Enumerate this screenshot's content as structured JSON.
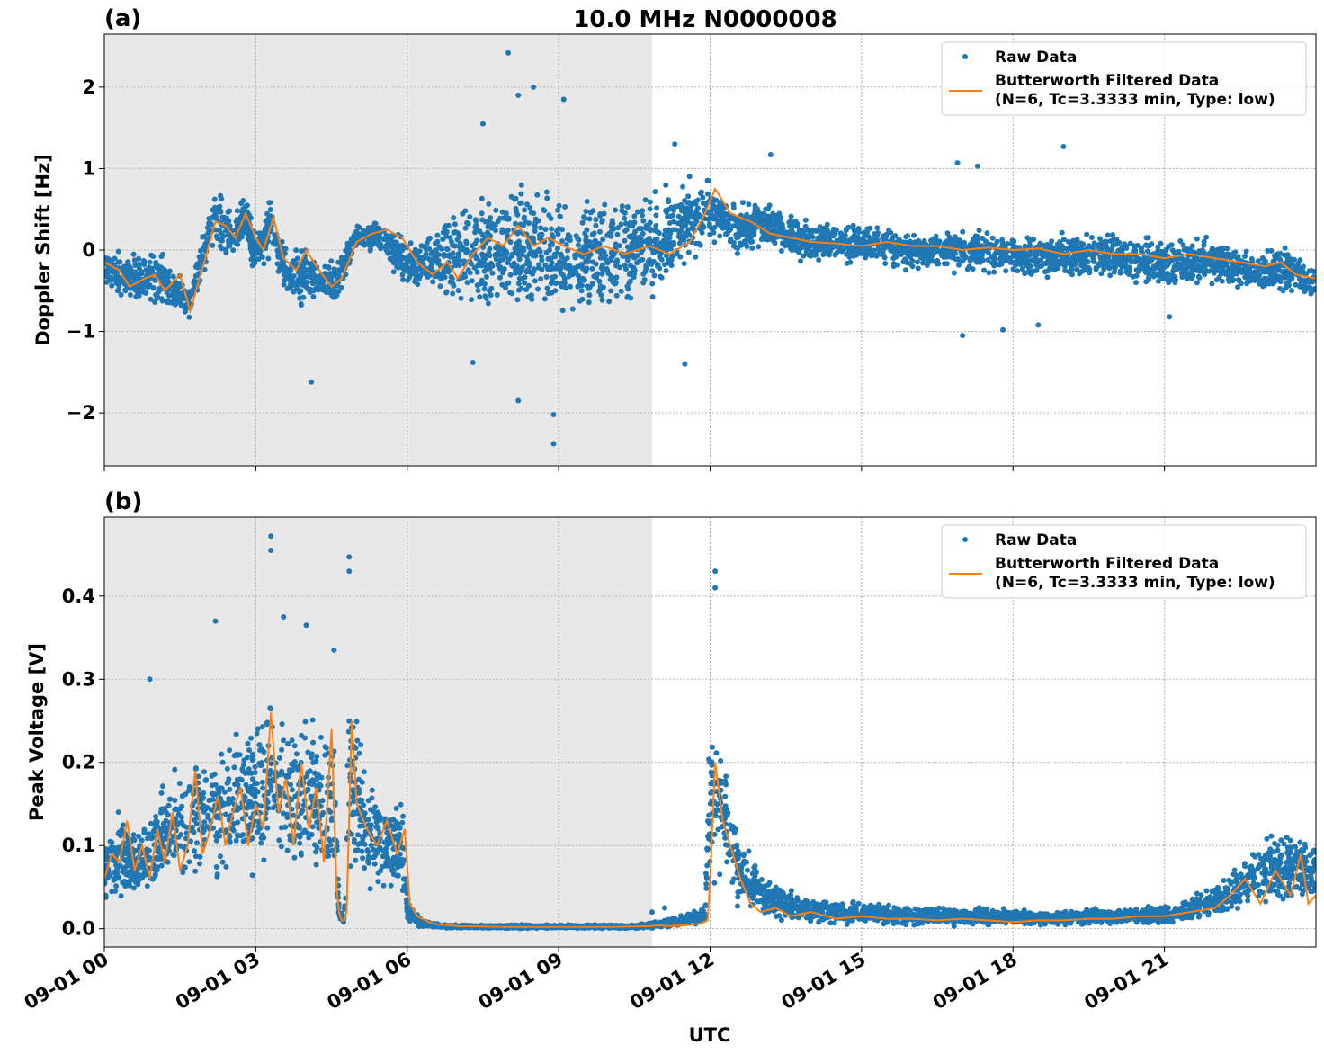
{
  "figure": {
    "title": "10.0 MHz N0000008",
    "xlabel": "UTC",
    "x_tick_labels": [
      "09-01 00",
      "09-01 03",
      "09-01 06",
      "09-01 09",
      "09-01 12",
      "09-01 15",
      "09-01 18",
      "09-01 21"
    ]
  },
  "colors": {
    "raw": "#1f77b4",
    "filtered": "#ff7f0e",
    "shade": "#e8e8e8",
    "grid": "#b0b0b0"
  },
  "chart_data": [
    {
      "panel_label": "(a)",
      "type": "scatter",
      "ylabel": "Doppler Shift [Hz]",
      "x_units": "hours UTC",
      "xlim": [
        0,
        24
      ],
      "ylim": [
        -2.65,
        2.65
      ],
      "y_ticks": [
        -2,
        -1,
        0,
        1,
        2
      ],
      "y_tick_labels": [
        "−2",
        "−1",
        "0",
        "1",
        "2"
      ],
      "shaded_x_range": [
        0,
        10.85
      ],
      "grid": true,
      "legend_position": "top-right",
      "legend": [
        "Raw Data",
        "Butterworth Filtered Data",
        "(N=6, Tc=3.3333 min, Type: low)"
      ],
      "series": [
        {
          "name": "Raw Data",
          "kind": "scatter-band",
          "x": [
            0,
            0.5,
            1,
            1.5,
            1.7,
            2,
            2.2,
            2.5,
            2.8,
            3,
            3.3,
            3.6,
            3.9,
            4.2,
            4.6,
            5,
            5.5,
            5.8,
            6.2,
            6.6,
            7,
            7.5,
            8,
            8.5,
            9,
            9.5,
            10,
            10.5,
            11,
            11.5,
            11.9,
            12.2,
            12.5,
            13,
            13.5,
            14,
            15,
            16,
            17,
            18,
            19,
            20,
            21,
            22,
            22.5,
            23,
            23.5,
            24
          ],
          "upper": [
            0.05,
            0.0,
            0.1,
            -0.2,
            -0.4,
            0.4,
            0.8,
            0.6,
            0.75,
            0.3,
            0.8,
            0.0,
            0.2,
            -0.1,
            0.0,
            0.35,
            0.4,
            0.3,
            0.1,
            0.35,
            0.7,
            0.9,
            0.9,
            0.95,
            0.85,
            0.85,
            0.8,
            0.85,
            0.9,
            0.9,
            1.0,
            0.7,
            0.6,
            0.7,
            0.5,
            0.4,
            0.35,
            0.3,
            0.3,
            0.25,
            0.3,
            0.25,
            0.2,
            0.2,
            0.1,
            0.05,
            0.1,
            -0.2
          ],
          "lower": [
            -0.5,
            -0.65,
            -0.85,
            -0.85,
            -1.0,
            -0.3,
            0.0,
            -0.2,
            0.0,
            -0.4,
            -0.2,
            -0.6,
            -0.9,
            -0.6,
            -0.8,
            0.0,
            -0.1,
            -0.4,
            -0.6,
            -0.6,
            -0.8,
            -0.9,
            -1.0,
            -1.0,
            -0.95,
            -1.0,
            -0.9,
            -0.8,
            -0.7,
            -0.3,
            -0.1,
            0.1,
            -0.1,
            0.0,
            -0.1,
            -0.2,
            -0.2,
            -0.3,
            -0.3,
            -0.4,
            -0.4,
            -0.4,
            -0.5,
            -0.5,
            -0.55,
            -0.6,
            -0.6,
            -0.65
          ],
          "outliers": [
            [
              8.0,
              2.42
            ],
            [
              8.5,
              2.0
            ],
            [
              8.2,
              1.9
            ],
            [
              9.1,
              1.85
            ],
            [
              7.5,
              1.55
            ],
            [
              11.3,
              1.3
            ],
            [
              13.2,
              1.17
            ],
            [
              16.9,
              1.07
            ],
            [
              17.3,
              1.03
            ],
            [
              19.0,
              1.27
            ],
            [
              4.1,
              -1.62
            ],
            [
              8.2,
              -1.85
            ],
            [
              8.9,
              -2.02
            ],
            [
              8.9,
              -2.38
            ],
            [
              7.3,
              -1.38
            ],
            [
              11.5,
              -1.4
            ],
            [
              17.0,
              -1.05
            ],
            [
              17.8,
              -0.98
            ],
            [
              18.5,
              -0.92
            ],
            [
              21.1,
              -0.82
            ]
          ]
        },
        {
          "name": "Butterworth Filtered Data",
          "kind": "line",
          "x": [
            0,
            0.3,
            0.5,
            0.8,
            1.0,
            1.2,
            1.5,
            1.7,
            2.0,
            2.2,
            2.4,
            2.6,
            2.8,
            3.0,
            3.15,
            3.35,
            3.55,
            3.8,
            4.0,
            4.2,
            4.5,
            4.7,
            5.0,
            5.3,
            5.6,
            5.9,
            6.2,
            6.5,
            6.8,
            7.0,
            7.3,
            7.6,
            7.9,
            8.2,
            8.5,
            8.8,
            9.1,
            9.5,
            9.9,
            10.3,
            10.8,
            11.2,
            11.6,
            11.9,
            12.1,
            12.4,
            12.8,
            13.2,
            13.6,
            14.0,
            14.5,
            15.0,
            15.5,
            16.0,
            16.5,
            17.0,
            17.5,
            18.0,
            18.5,
            19.0,
            19.5,
            20.0,
            20.5,
            21.0,
            21.5,
            22.0,
            22.5,
            23.0,
            23.3,
            23.6,
            24.0
          ],
          "y": [
            -0.15,
            -0.25,
            -0.45,
            -0.35,
            -0.3,
            -0.5,
            -0.3,
            -0.75,
            -0.1,
            0.35,
            0.3,
            0.15,
            0.45,
            0.15,
            0.0,
            0.4,
            -0.1,
            -0.25,
            0.0,
            -0.2,
            -0.45,
            -0.35,
            0.1,
            0.2,
            0.25,
            0.15,
            -0.15,
            -0.3,
            -0.15,
            -0.35,
            -0.05,
            0.15,
            0.05,
            0.3,
            0.05,
            0.15,
            0.05,
            -0.05,
            0.05,
            -0.05,
            0.05,
            -0.05,
            0.1,
            0.45,
            0.75,
            0.45,
            0.35,
            0.2,
            0.15,
            0.1,
            0.08,
            0.05,
            0.1,
            0.05,
            0.05,
            0.0,
            0.03,
            0.0,
            0.02,
            -0.05,
            0.0,
            -0.05,
            -0.05,
            -0.1,
            -0.05,
            -0.1,
            -0.15,
            -0.2,
            -0.15,
            -0.3,
            -0.35
          ]
        }
      ]
    },
    {
      "panel_label": "(b)",
      "type": "scatter",
      "ylabel": "Peak Voltage [V]",
      "x_units": "hours UTC",
      "xlim": [
        0,
        24
      ],
      "ylim": [
        -0.022,
        0.495
      ],
      "y_ticks": [
        0.0,
        0.1,
        0.2,
        0.3,
        0.4
      ],
      "y_tick_labels": [
        "0.0",
        "0.1",
        "0.2",
        "0.3",
        "0.4"
      ],
      "shaded_x_range": [
        0,
        10.85
      ],
      "grid": true,
      "legend_position": "top-right",
      "legend": [
        "Raw Data",
        "Butterworth Filtered Data",
        "(N=6, Tc=3.3333 min, Type: low)"
      ],
      "series": [
        {
          "name": "Raw Data",
          "kind": "scatter-band",
          "x": [
            0,
            0.3,
            0.6,
            1.0,
            1.4,
            1.7,
            2.0,
            2.2,
            2.5,
            2.8,
            3.0,
            3.3,
            3.6,
            4.0,
            4.3,
            4.55,
            4.65,
            4.75,
            4.85,
            4.95,
            5.2,
            5.6,
            5.9,
            6.0,
            6.1,
            6.3,
            6.8,
            7.5,
            8.5,
            9.5,
            10.5,
            11.0,
            11.5,
            11.9,
            12.0,
            12.2,
            12.5,
            12.8,
            13.2,
            14.0,
            15.0,
            16.0,
            17.0,
            18.0,
            19.0,
            20.0,
            21.0,
            21.5,
            22.0,
            22.5,
            23.0,
            23.5,
            24.0
          ],
          "upper": [
            0.12,
            0.15,
            0.12,
            0.17,
            0.2,
            0.22,
            0.24,
            0.22,
            0.25,
            0.27,
            0.28,
            0.32,
            0.27,
            0.28,
            0.25,
            0.3,
            0.03,
            0.02,
            0.35,
            0.3,
            0.2,
            0.18,
            0.17,
            0.05,
            0.03,
            0.01,
            0.005,
            0.005,
            0.005,
            0.005,
            0.005,
            0.01,
            0.02,
            0.03,
            0.28,
            0.24,
            0.15,
            0.1,
            0.06,
            0.04,
            0.035,
            0.03,
            0.028,
            0.025,
            0.025,
            0.027,
            0.03,
            0.04,
            0.06,
            0.09,
            0.12,
            0.13,
            0.11
          ],
          "lower": [
            0.02,
            0.03,
            0.03,
            0.03,
            0.04,
            0.03,
            0.04,
            0.04,
            0.05,
            0.04,
            0.04,
            0.05,
            0.04,
            0.04,
            0.03,
            0.02,
            0.005,
            0.005,
            0.02,
            0.03,
            0.03,
            0.03,
            0.02,
            0.005,
            0.002,
            0.001,
            0.0,
            0.0,
            0.0,
            0.0,
            0.0,
            0.0,
            0.002,
            0.005,
            0.03,
            0.04,
            0.02,
            0.01,
            0.005,
            0.003,
            0.003,
            0.003,
            0.002,
            0.002,
            0.002,
            0.003,
            0.003,
            0.005,
            0.01,
            0.015,
            0.02,
            0.02,
            0.02
          ],
          "outliers": [
            [
              3.3,
              0.472
            ],
            [
              3.3,
              0.455
            ],
            [
              4.85,
              0.447
            ],
            [
              4.85,
              0.43
            ],
            [
              12.1,
              0.43
            ],
            [
              12.1,
              0.41
            ],
            [
              2.2,
              0.37
            ],
            [
              3.55,
              0.375
            ],
            [
              4.0,
              0.365
            ],
            [
              0.9,
              0.3
            ],
            [
              4.55,
              0.335
            ],
            [
              11.1,
              0.025
            ],
            [
              10.85,
              0.02
            ]
          ]
        },
        {
          "name": "Butterworth Filtered Data",
          "kind": "line",
          "x": [
            0,
            0.15,
            0.3,
            0.45,
            0.6,
            0.75,
            0.9,
            1.05,
            1.2,
            1.35,
            1.5,
            1.65,
            1.8,
            1.95,
            2.1,
            2.25,
            2.4,
            2.55,
            2.7,
            2.85,
            3.0,
            3.15,
            3.3,
            3.45,
            3.6,
            3.75,
            3.9,
            4.05,
            4.2,
            4.35,
            4.5,
            4.6,
            4.65,
            4.7,
            4.75,
            4.8,
            4.9,
            5.0,
            5.2,
            5.4,
            5.6,
            5.8,
            5.95,
            6.05,
            6.2,
            6.5,
            7.0,
            8.0,
            9.0,
            10.0,
            10.8,
            11.0,
            11.2,
            11.5,
            11.8,
            11.95,
            12.0,
            12.1,
            12.25,
            12.4,
            12.6,
            12.8,
            13.0,
            13.3,
            13.6,
            14.0,
            14.5,
            15.0,
            15.5,
            16.0,
            16.5,
            17.0,
            17.5,
            18.0,
            18.5,
            19.0,
            19.5,
            20.0,
            20.5,
            21.0,
            21.5,
            22.0,
            22.3,
            22.6,
            22.9,
            23.2,
            23.5,
            23.7,
            23.85,
            24.0
          ],
          "y": [
            0.06,
            0.09,
            0.08,
            0.13,
            0.07,
            0.1,
            0.06,
            0.12,
            0.08,
            0.14,
            0.07,
            0.1,
            0.19,
            0.09,
            0.12,
            0.16,
            0.1,
            0.14,
            0.17,
            0.1,
            0.15,
            0.12,
            0.26,
            0.14,
            0.18,
            0.1,
            0.2,
            0.12,
            0.17,
            0.08,
            0.24,
            0.05,
            0.02,
            0.01,
            0.01,
            0.02,
            0.25,
            0.15,
            0.12,
            0.1,
            0.13,
            0.09,
            0.12,
            0.03,
            0.015,
            0.006,
            0.003,
            0.002,
            0.002,
            0.002,
            0.003,
            0.004,
            0.003,
            0.004,
            0.006,
            0.01,
            0.06,
            0.2,
            0.13,
            0.1,
            0.06,
            0.03,
            0.02,
            0.025,
            0.015,
            0.02,
            0.012,
            0.015,
            0.012,
            0.012,
            0.01,
            0.012,
            0.01,
            0.008,
            0.01,
            0.01,
            0.012,
            0.012,
            0.015,
            0.015,
            0.02,
            0.025,
            0.04,
            0.06,
            0.03,
            0.07,
            0.04,
            0.09,
            0.03,
            0.04
          ]
        }
      ]
    }
  ]
}
